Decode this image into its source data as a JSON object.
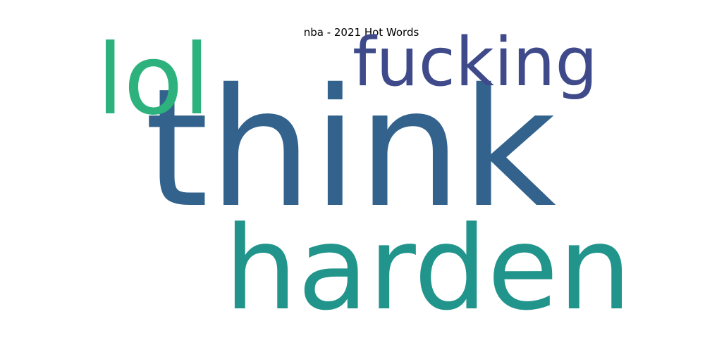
{
  "title": "nba - 2021 Hot Words",
  "words": [
    {
      "text": "think",
      "color": "#33638d"
    },
    {
      "text": "harden",
      "color": "#21958b"
    },
    {
      "text": "lol",
      "color": "#2db27d"
    },
    {
      "text": "fucking",
      "color": "#3f4a8a"
    }
  ]
}
